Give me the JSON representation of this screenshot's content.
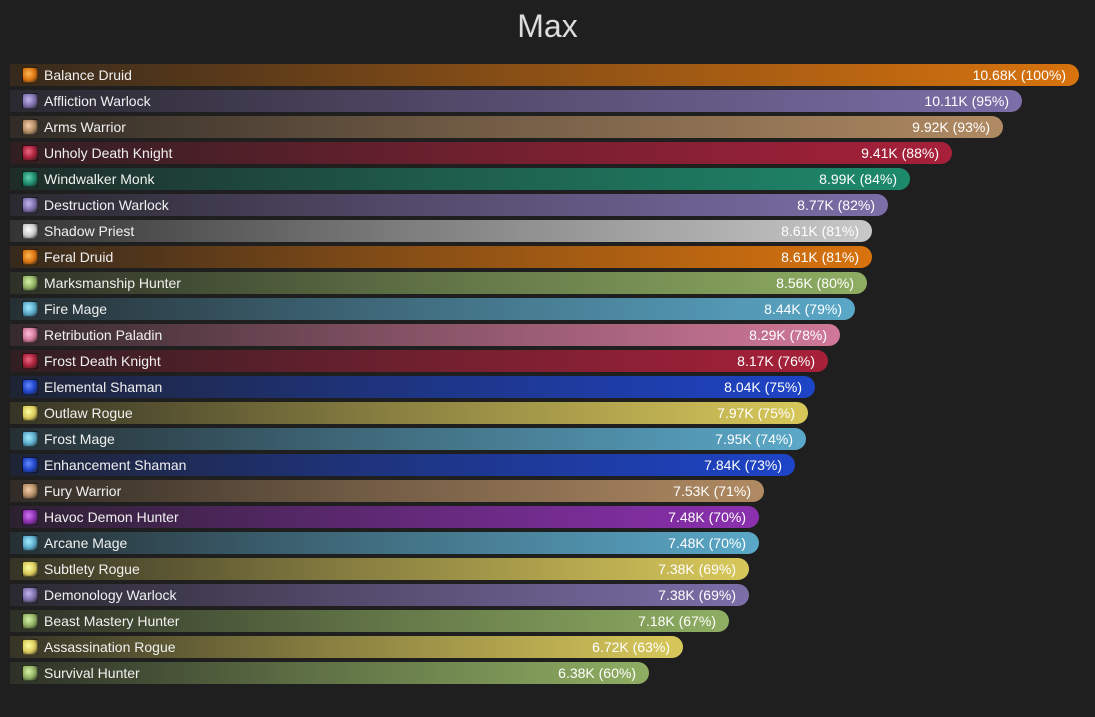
{
  "chart_data": {
    "type": "bar",
    "orientation": "horizontal",
    "title": "Max",
    "value_unit": "K",
    "categories": [
      "Balance Druid",
      "Affliction Warlock",
      "Arms Warrior",
      "Unholy Death Knight",
      "Windwalker Monk",
      "Destruction Warlock",
      "Shadow Priest",
      "Feral Druid",
      "Marksmanship Hunter",
      "Fire Mage",
      "Retribution Paladin",
      "Frost Death Knight",
      "Elemental Shaman",
      "Outlaw Rogue",
      "Frost Mage",
      "Enhancement Shaman",
      "Fury Warrior",
      "Havoc Demon Hunter",
      "Arcane Mage",
      "Subtlety Rogue",
      "Demonology Warlock",
      "Beast Mastery Hunter",
      "Assassination Rogue",
      "Survival Hunter"
    ],
    "values": [
      10.68,
      10.11,
      9.92,
      9.41,
      8.99,
      8.77,
      8.61,
      8.61,
      8.56,
      8.44,
      8.29,
      8.17,
      8.04,
      7.97,
      7.95,
      7.84,
      7.53,
      7.48,
      7.48,
      7.38,
      7.38,
      7.18,
      6.72,
      6.38
    ],
    "value_labels": [
      "10.68K (100%)",
      "10.11K (95%)",
      "9.92K (93%)",
      "9.41K (88%)",
      "8.99K (84%)",
      "8.77K (82%)",
      "8.61K (81%)",
      "8.61K (81%)",
      "8.56K (80%)",
      "8.44K (79%)",
      "8.29K (78%)",
      "8.17K (76%)",
      "8.04K (75%)",
      "7.97K (75%)",
      "7.95K (74%)",
      "7.84K (73%)",
      "7.53K (71%)",
      "7.48K (70%)",
      "7.48K (70%)",
      "7.38K (69%)",
      "7.38K (69%)",
      "7.18K (67%)",
      "6.72K (63%)",
      "6.38K (60%)"
    ],
    "colors": [
      "#d8730e",
      "#7c6ea8",
      "#b08a62",
      "#a8203a",
      "#1d8a6c",
      "#7c6ea8",
      "#c8c8c8",
      "#d8730e",
      "#8fae62",
      "#5aa8c8",
      "#d07898",
      "#a8203a",
      "#1e44c8",
      "#d8c85a",
      "#5aa8c8",
      "#1e44c8",
      "#b08a62",
      "#8c30b0",
      "#5aa8c8",
      "#d8c85a",
      "#7c6ea8",
      "#8fae62",
      "#d8c85a",
      "#8fae62"
    ],
    "icons": [
      "balance-druid-icon",
      "affliction-warlock-icon",
      "arms-warrior-icon",
      "unholy-death-knight-icon",
      "windwalker-monk-icon",
      "destruction-warlock-icon",
      "shadow-priest-icon",
      "feral-druid-icon",
      "marksmanship-hunter-icon",
      "fire-mage-icon",
      "retribution-paladin-icon",
      "frost-death-knight-icon",
      "elemental-shaman-icon",
      "outlaw-rogue-icon",
      "frost-mage-icon",
      "enhancement-shaman-icon",
      "fury-warrior-icon",
      "havoc-demon-hunter-icon",
      "arcane-mage-icon",
      "subtlety-rogue-icon",
      "demonology-warlock-icon",
      "beast-mastery-hunter-icon",
      "assassination-rogue-icon",
      "survival-hunter-icon"
    ],
    "xlim": [
      0,
      10.68
    ],
    "grid": false,
    "legend": "none"
  }
}
